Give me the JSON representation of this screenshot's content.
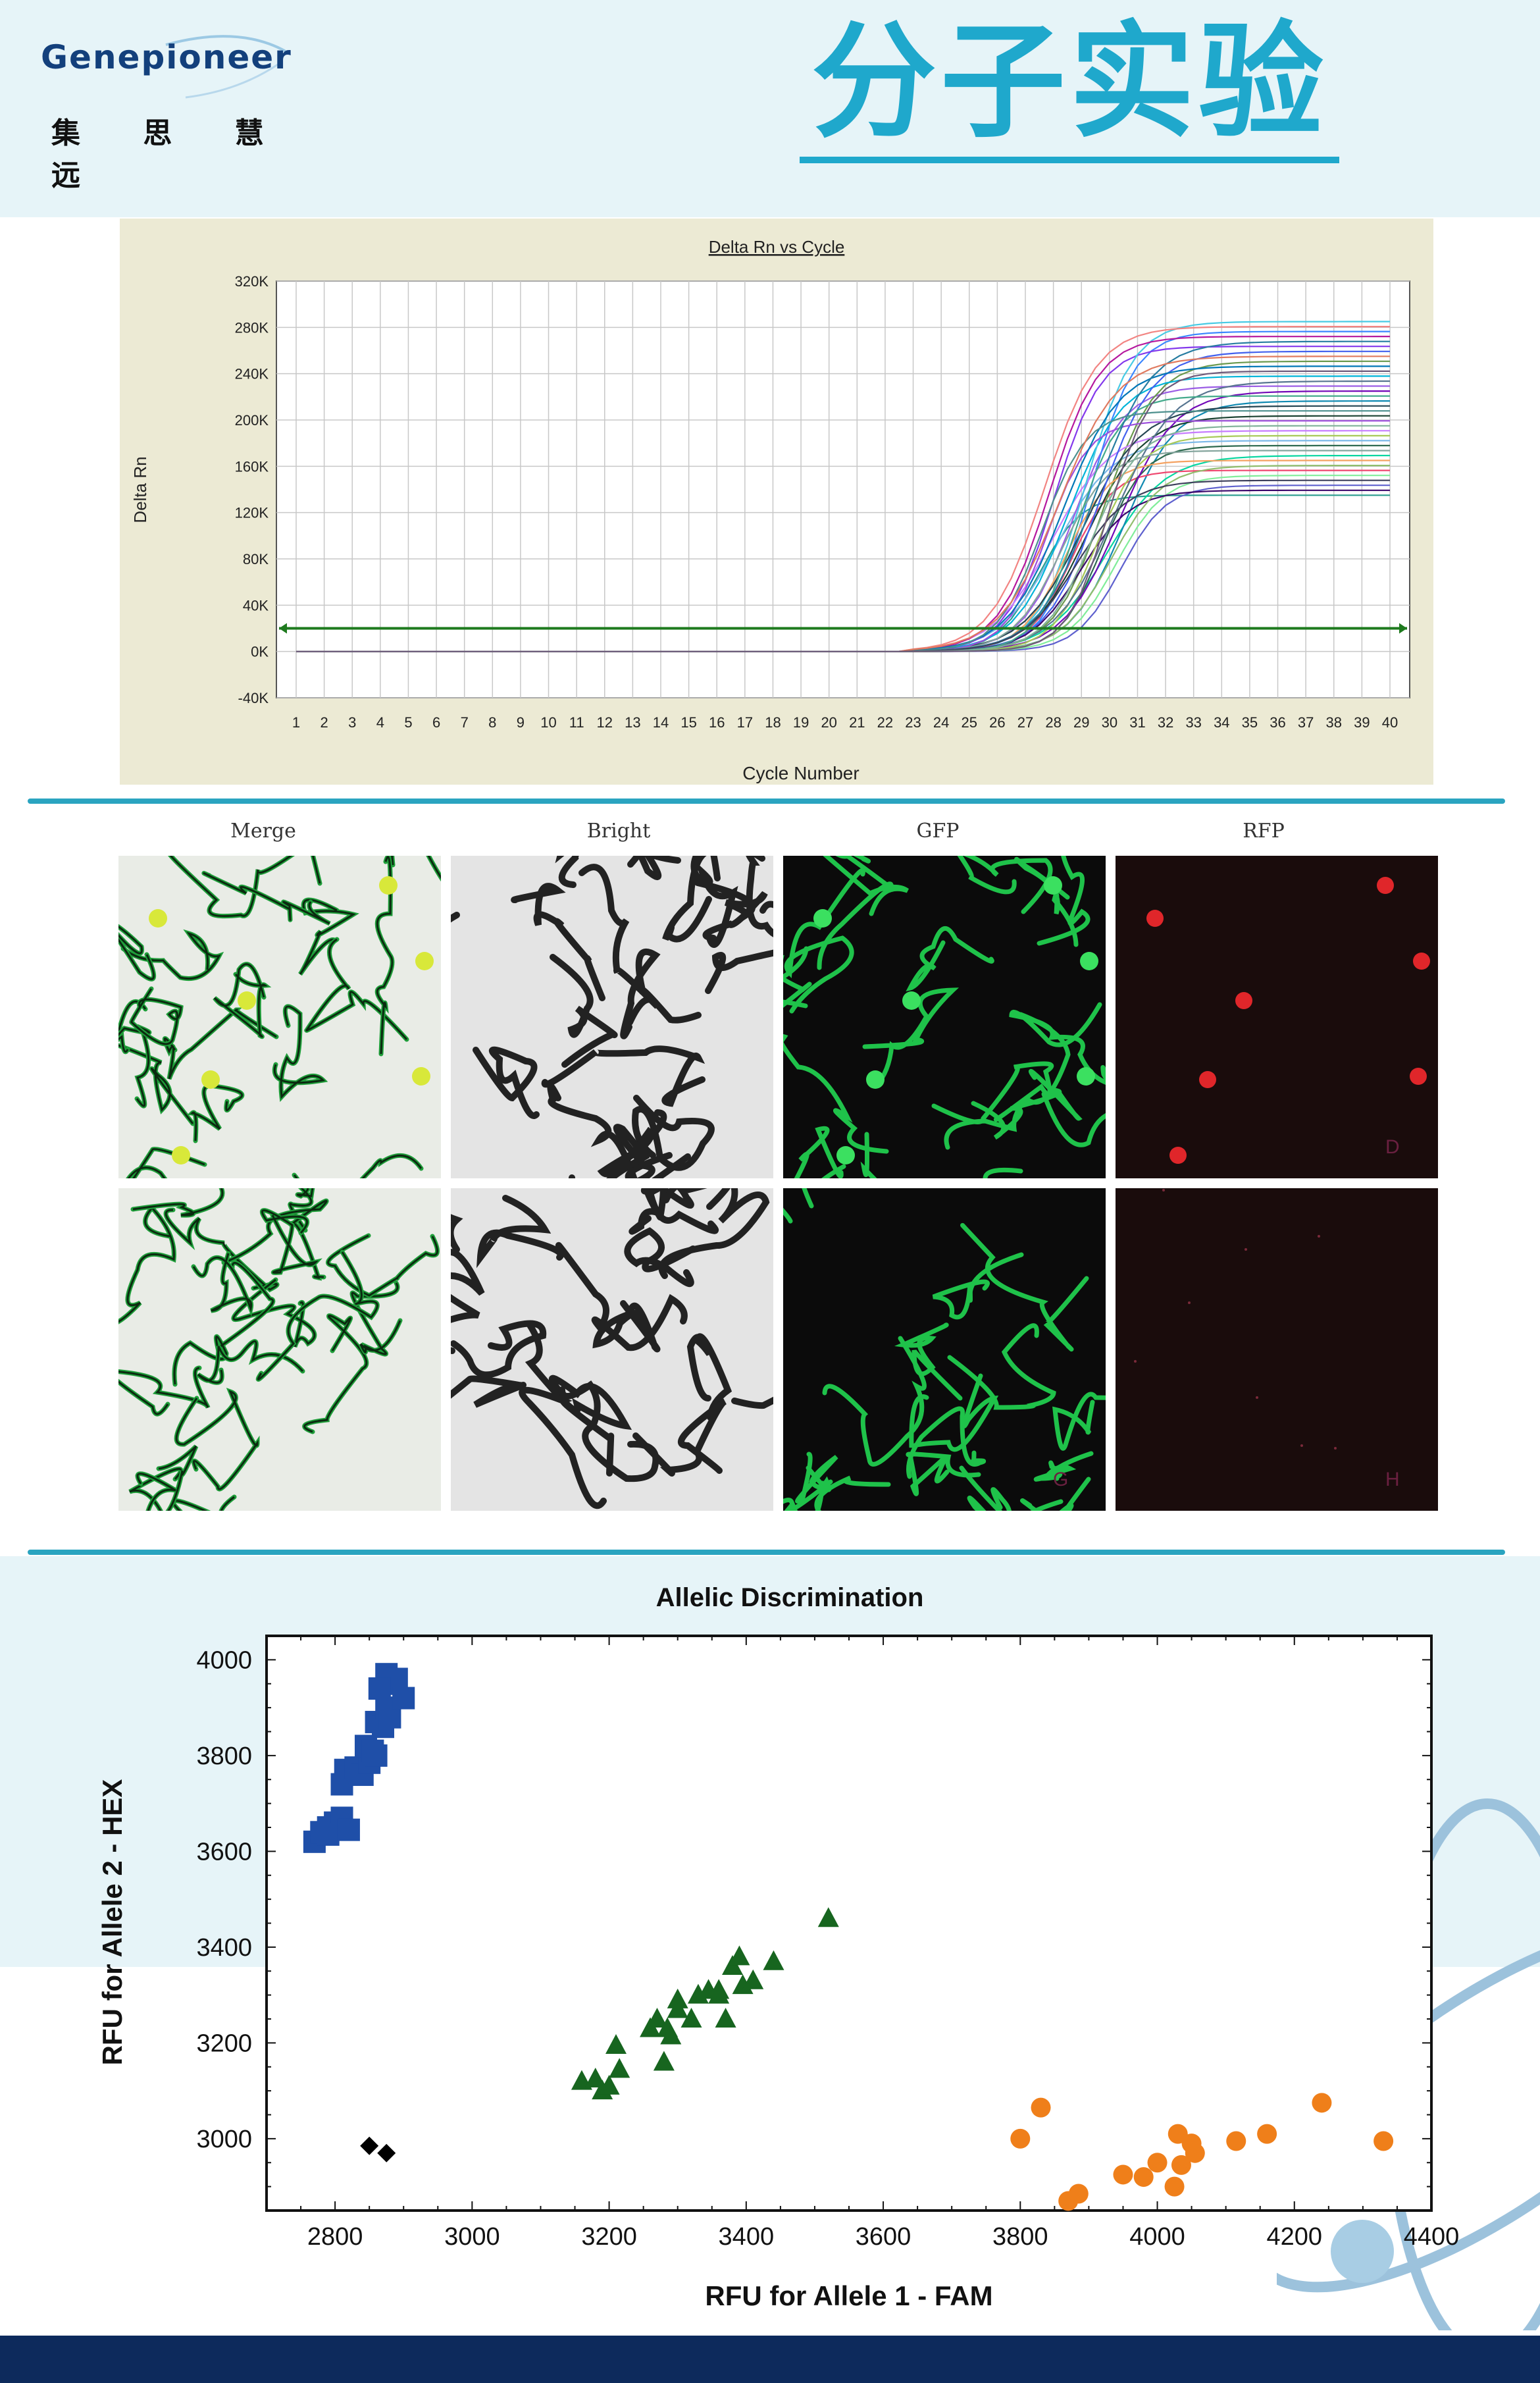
{
  "header": {
    "logo_word": "Genepioneer",
    "logo_tagline": "集 思 慧 远",
    "title": "分子实验"
  },
  "pcr_chart": {
    "title": "Delta Rn vs Cycle",
    "xlabel": "Cycle Number",
    "ylabel": "Delta Rn",
    "y_ticks": [
      "320K",
      "280K",
      "240K",
      "200K",
      "160K",
      "120K",
      "80K",
      "40K",
      "0K",
      "-40K"
    ],
    "x_ticks": [
      "1",
      "2",
      "3",
      "4",
      "5",
      "6",
      "7",
      "8",
      "9",
      "10",
      "11",
      "12",
      "13",
      "14",
      "15",
      "16",
      "17",
      "18",
      "19",
      "20",
      "21",
      "22",
      "23",
      "24",
      "25",
      "26",
      "27",
      "28",
      "29",
      "30",
      "31",
      "32",
      "33",
      "34",
      "35",
      "36",
      "37",
      "38",
      "39",
      "40"
    ]
  },
  "microscopy": {
    "labels": [
      "Merge",
      "Bright",
      "GFP",
      "RFP"
    ],
    "panel_letters": [
      "D",
      "G",
      "H"
    ]
  },
  "allelic_chart": {
    "title": "Allelic Discrimination",
    "xlabel": "RFU for Allele 1 - FAM",
    "ylabel": "RFU for Allele 2 - HEX",
    "x_ticks": [
      "2800",
      "3000",
      "3200",
      "3400",
      "3600",
      "3800",
      "4000",
      "4200",
      "4400"
    ],
    "y_ticks": [
      "4000",
      "3800",
      "3600",
      "3400",
      "3200",
      "3000"
    ]
  },
  "chart_data": [
    {
      "type": "line",
      "title": "Delta Rn vs Cycle",
      "xlabel": "Cycle Number",
      "ylabel": "Delta Rn",
      "xlim": [
        1,
        40
      ],
      "ylim": [
        -40000,
        320000
      ],
      "grid": true,
      "threshold": 20000,
      "amplification_curves": {
        "count": 36,
        "baseline_until_cycle": 23,
        "midpoint_cycle_range": [
          27.5,
          30.5
        ],
        "plateau_range": [
          135000,
          285000
        ]
      }
    },
    {
      "type": "scatter",
      "title": "Allelic Discrimination",
      "xlabel": "RFU for Allele 1 - FAM",
      "ylabel": "RFU for Allele 2 - HEX",
      "xlim": [
        2700,
        4400
      ],
      "ylim": [
        2850,
        4050
      ],
      "series": [
        {
          "marker": "square",
          "color": "#1f4fa8",
          "points": [
            [
              2770,
              3620
            ],
            [
              2780,
              3640
            ],
            [
              2790,
              3650
            ],
            [
              2800,
              3660
            ],
            [
              2810,
              3670
            ],
            [
              2790,
              3635
            ],
            [
              2820,
              3645
            ],
            [
              2810,
              3740
            ],
            [
              2815,
              3770
            ],
            [
              2830,
              3775
            ],
            [
              2840,
              3760
            ],
            [
              2850,
              3785
            ],
            [
              2860,
              3800
            ],
            [
              2845,
              3820
            ],
            [
              2855,
              3810
            ],
            [
              2860,
              3870
            ],
            [
              2870,
              3860
            ],
            [
              2875,
              3900
            ],
            [
              2880,
              3880
            ],
            [
              2885,
              3950
            ],
            [
              2875,
              3970
            ],
            [
              2890,
              3960
            ],
            [
              2900,
              3920
            ],
            [
              2865,
              3940
            ]
          ]
        },
        {
          "marker": "triangle",
          "color": "#17651f",
          "points": [
            [
              3160,
              3120
            ],
            [
              3180,
              3125
            ],
            [
              3190,
              3100
            ],
            [
              3200,
              3110
            ],
            [
              3215,
              3145
            ],
            [
              3210,
              3195
            ],
            [
              3260,
              3230
            ],
            [
              3270,
              3250
            ],
            [
              3280,
              3160
            ],
            [
              3285,
              3230
            ],
            [
              3290,
              3215
            ],
            [
              3300,
              3270
            ],
            [
              3300,
              3290
            ],
            [
              3320,
              3250
            ],
            [
              3330,
              3300
            ],
            [
              3345,
              3310
            ],
            [
              3360,
              3300
            ],
            [
              3360,
              3310
            ],
            [
              3370,
              3250
            ],
            [
              3380,
              3360
            ],
            [
              3390,
              3380
            ],
            [
              3395,
              3320
            ],
            [
              3410,
              3330
            ],
            [
              3440,
              3370
            ],
            [
              3520,
              3460
            ]
          ]
        },
        {
          "marker": "circle",
          "color": "#ef7f1a",
          "points": [
            [
              3800,
              3000
            ],
            [
              3830,
              3065
            ],
            [
              3870,
              2870
            ],
            [
              3885,
              2885
            ],
            [
              3950,
              2925
            ],
            [
              3980,
              2920
            ],
            [
              4000,
              2950
            ],
            [
              4025,
              2900
            ],
            [
              4030,
              3010
            ],
            [
              4035,
              2945
            ],
            [
              4050,
              2990
            ],
            [
              4055,
              2970
            ],
            [
              4115,
              2995
            ],
            [
              4160,
              3010
            ],
            [
              4240,
              3075
            ],
            [
              4330,
              2995
            ]
          ]
        },
        {
          "marker": "diamond",
          "color": "#000000",
          "points": [
            [
              2850,
              2985
            ],
            [
              2875,
              2970
            ]
          ]
        }
      ]
    }
  ]
}
